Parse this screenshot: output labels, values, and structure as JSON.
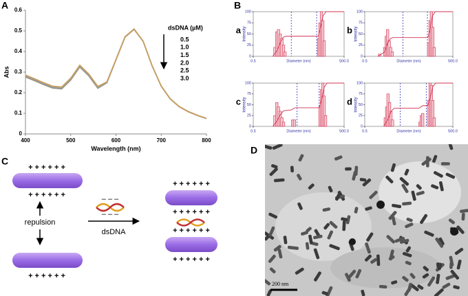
{
  "panel_labels": [
    "A",
    "B",
    "C",
    "D"
  ],
  "chart_data": [
    {
      "type": "line",
      "xlabel": "Wavelength (nm)",
      "ylabel": "Abs",
      "legend_title": "dsDNA (µM)",
      "xlim": [
        400,
        800
      ],
      "xticks": [
        400,
        500,
        600,
        700,
        800
      ],
      "ylim": [
        0,
        0.6
      ],
      "yticks": [
        0,
        0.1,
        0.2,
        0.3,
        0.4,
        0.5,
        0.6
      ],
      "x": [
        400,
        420,
        440,
        460,
        480,
        500,
        520,
        540,
        560,
        580,
        600,
        620,
        640,
        660,
        680,
        700,
        720,
        740,
        760,
        780,
        800
      ],
      "series": [
        {
          "name": "3.0",
          "color": "#d8a35e",
          "values": [
            0.276,
            0.258,
            0.239,
            0.222,
            0.218,
            0.261,
            0.324,
            0.281,
            0.221,
            0.248,
            0.359,
            0.469,
            0.507,
            0.449,
            0.329,
            0.231,
            0.169,
            0.131,
            0.107,
            0.089,
            0.074
          ]
        },
        {
          "name": "2.5",
          "color": "#6f8fa8",
          "values": [
            0.278,
            0.26,
            0.241,
            0.224,
            0.22,
            0.263,
            0.326,
            0.283,
            0.223,
            0.249,
            0.36,
            0.47,
            0.508,
            0.45,
            0.33,
            0.232,
            0.17,
            0.132,
            0.108,
            0.09,
            0.075
          ]
        },
        {
          "name": "2.0",
          "color": "#7f9bb0",
          "values": [
            0.28,
            0.262,
            0.243,
            0.226,
            0.222,
            0.265,
            0.328,
            0.285,
            0.225,
            0.25,
            0.36,
            0.47,
            0.508,
            0.45,
            0.33,
            0.232,
            0.17,
            0.132,
            0.108,
            0.09,
            0.075
          ]
        },
        {
          "name": "1.5",
          "color": "#9aa0a4",
          "values": [
            0.282,
            0.264,
            0.245,
            0.228,
            0.224,
            0.267,
            0.33,
            0.287,
            0.227,
            0.251,
            0.36,
            0.47,
            0.508,
            0.45,
            0.33,
            0.232,
            0.17,
            0.132,
            0.108,
            0.09,
            0.075
          ]
        },
        {
          "name": "1.0",
          "color": "#b89a70",
          "values": [
            0.284,
            0.266,
            0.247,
            0.23,
            0.226,
            0.269,
            0.332,
            0.289,
            0.229,
            0.252,
            0.361,
            0.471,
            0.509,
            0.45,
            0.33,
            0.232,
            0.17,
            0.132,
            0.108,
            0.09,
            0.075
          ]
        },
        {
          "name": "0.5",
          "color": "#c9a060",
          "values": [
            0.286,
            0.268,
            0.249,
            0.232,
            0.228,
            0.271,
            0.334,
            0.291,
            0.231,
            0.253,
            0.362,
            0.472,
            0.51,
            0.451,
            0.331,
            0.233,
            0.171,
            0.133,
            0.109,
            0.091,
            0.076
          ]
        }
      ]
    },
    {
      "type": "bar",
      "panel_label": "a",
      "xlabel": "Diameter (nm)",
      "ylabel": "Intensity",
      "log_x": true,
      "xlim": [
        0.5,
        500
      ],
      "xticks": [
        0.5,
        {
          "value": 500,
          "label": "500.0"
        }
      ],
      "ylim": [
        0,
        100
      ],
      "yticks": [
        0,
        25,
        50,
        75,
        100
      ],
      "color": "#d03050",
      "x": [
        2.6,
        3,
        3.4,
        3.9,
        4.4,
        5,
        5.6,
        72,
        80,
        89,
        99,
        110
      ],
      "values": [
        20,
        55,
        60,
        50,
        40,
        25,
        10,
        40,
        75,
        100,
        80,
        35
      ],
      "cumulative": {
        "x": [
          2.2,
          3,
          4,
          5,
          6,
          70,
          80,
          100,
          125,
          500
        ],
        "values": [
          0,
          12,
          32,
          43,
          45,
          45,
          60,
          90,
          100,
          100
        ]
      },
      "markers": [
        9,
        62
      ]
    },
    {
      "type": "bar",
      "panel_label": "b",
      "xlabel": "Diameter (nm)",
      "ylabel": "Intensity",
      "log_x": true,
      "xlim": [
        0.5,
        500
      ],
      "xticks": [
        0.5,
        {
          "value": 500,
          "label": "500.0"
        }
      ],
      "ylim": [
        0,
        100
      ],
      "yticks": [
        0,
        25,
        50,
        75,
        100
      ],
      "color": "#d03050",
      "x": [
        1.6,
        2.4,
        2.7,
        3,
        3.4,
        3.8,
        4.3,
        75,
        84,
        93,
        104,
        116
      ],
      "values": [
        5,
        20,
        45,
        60,
        35,
        20,
        10,
        30,
        80,
        100,
        65,
        20
      ],
      "cumulative": {
        "x": [
          1.4,
          2.4,
          3,
          3.8,
          4.6,
          70,
          84,
          100,
          125,
          500
        ],
        "values": [
          0,
          10,
          30,
          40,
          42,
          42,
          60,
          90,
          100,
          100
        ]
      },
      "markers": [
        10,
        68
      ]
    },
    {
      "type": "bar",
      "panel_label": "c",
      "xlabel": "Diameter (nm)",
      "ylabel": "Intensity",
      "log_x": true,
      "xlim": [
        0.5,
        500
      ],
      "xticks": [
        0.5,
        {
          "value": 500,
          "label": "500.0"
        }
      ],
      "ylim": [
        0,
        100
      ],
      "yticks": [
        0,
        25,
        50,
        75,
        100
      ],
      "color": "#d03050",
      "x": [
        2.6,
        3,
        3.4,
        3.9,
        4.4,
        5,
        10,
        11.5,
        80,
        89,
        99,
        110,
        122
      ],
      "values": [
        25,
        55,
        45,
        35,
        20,
        10,
        15,
        15,
        45,
        85,
        100,
        70,
        25
      ],
      "cumulative": {
        "x": [
          2.2,
          3,
          4,
          5,
          9,
          12,
          75,
          89,
          110,
          135,
          500
        ],
        "values": [
          0,
          12,
          28,
          36,
          38,
          43,
          43,
          60,
          90,
          100,
          100
        ]
      },
      "markers": [
        14,
        75
      ]
    },
    {
      "type": "bar",
      "panel_label": "d",
      "xlabel": "Diameter (nm)",
      "ylabel": "Intensity",
      "log_x": true,
      "xlim": [
        0.5,
        500
      ],
      "xticks": [
        0.5,
        {
          "value": 500,
          "label": "500.0"
        }
      ],
      "ylim": [
        0,
        100
      ],
      "yticks": [
        0,
        25,
        50,
        75,
        100
      ],
      "color": "#d03050",
      "x": [
        2.5,
        2.8,
        3.1,
        3.5,
        3.9,
        4.4,
        38,
        42,
        47,
        75,
        84,
        93,
        104,
        116
      ],
      "values": [
        20,
        45,
        75,
        55,
        35,
        15,
        10,
        25,
        30,
        60,
        100,
        95,
        60,
        20
      ],
      "cumulative": {
        "x": [
          2.2,
          3,
          4,
          5,
          35,
          48,
          70,
          84,
          104,
          130,
          500
        ],
        "values": [
          0,
          15,
          35,
          42,
          42,
          48,
          48,
          65,
          92,
          100,
          100
        ]
      },
      "markers": [
        8,
        62
      ]
    }
  ],
  "diagram": {
    "charges": "+ + + + + +",
    "dna_charges": "– – –",
    "repulsion": "repulsion",
    "reagent": "dsDNA"
  },
  "micrograph": {
    "scale_bar": "200 nm"
  }
}
